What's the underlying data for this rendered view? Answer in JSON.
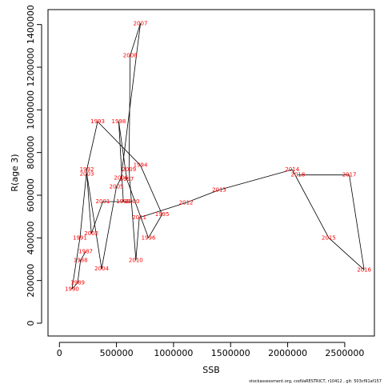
{
  "chart_data": {
    "type": "scatter",
    "xlabel": "SSB",
    "ylabel": "R(age 3)",
    "xlim": [
      -100000,
      2760000
    ],
    "ylim": [
      -60000,
      1470000
    ],
    "x_ticks": [
      0,
      500000,
      1000000,
      1500000,
      2000000,
      2500000
    ],
    "x_tick_labels": [
      "0",
      "500000",
      "1000000",
      "1500000",
      "2000000",
      "2500000"
    ],
    "y_ticks": [
      0,
      200000,
      400000,
      600000,
      800000,
      1000000,
      1200000,
      1400000
    ],
    "y_tick_labels": [
      "0",
      "200000",
      "400000",
      "600000",
      "800000",
      "1000000",
      "1200000",
      "1400000"
    ],
    "grid": false,
    "connected": true,
    "label_color": "#ff0000",
    "line_color": "#000000",
    "footer": "stockassessment.org, codVaRESTRICT, r10412 , git: 503cf91af157",
    "points": [
      {
        "year": "1990",
        "x": 110000,
        "y": 160000
      },
      {
        "year": "1989",
        "x": 160000,
        "y": 190000
      },
      {
        "year": "1988",
        "x": 185000,
        "y": 295000
      },
      {
        "year": "1987",
        "x": 230000,
        "y": 335000
      },
      {
        "year": "1991",
        "x": 180000,
        "y": 400000
      },
      {
        "year": "1992",
        "x": 240000,
        "y": 720000
      },
      {
        "year": "1993",
        "x": 335000,
        "y": 945000
      },
      {
        "year": "1994",
        "x": 710000,
        "y": 740000
      },
      {
        "year": "1995",
        "x": 900000,
        "y": 510000
      },
      {
        "year": "1996",
        "x": 780000,
        "y": 400000
      },
      {
        "year": "1997",
        "x": 590000,
        "y": 675000
      },
      {
        "year": "1998",
        "x": 520000,
        "y": 945000
      },
      {
        "year": "1999",
        "x": 560000,
        "y": 570000
      },
      {
        "year": "2000",
        "x": 640000,
        "y": 570000
      },
      {
        "year": "2001",
        "x": 380000,
        "y": 570000
      },
      {
        "year": "2002",
        "x": 280000,
        "y": 420000
      },
      {
        "year": "2003",
        "x": 240000,
        "y": 700000
      },
      {
        "year": "2004",
        "x": 370000,
        "y": 255000
      },
      {
        "year": "2005",
        "x": 500000,
        "y": 640000
      },
      {
        "year": "2006",
        "x": 540000,
        "y": 680000
      },
      {
        "year": "2007",
        "x": 710000,
        "y": 1405000
      },
      {
        "year": "2008",
        "x": 620000,
        "y": 1255000
      },
      {
        "year": "2009",
        "x": 610000,
        "y": 720000
      },
      {
        "year": "2010",
        "x": 670000,
        "y": 295000
      },
      {
        "year": "2011",
        "x": 700000,
        "y": 495000
      },
      {
        "year": "2012",
        "x": 1110000,
        "y": 565000
      },
      {
        "year": "2013",
        "x": 1400000,
        "y": 625000
      },
      {
        "year": "2014",
        "x": 2040000,
        "y": 720000
      },
      {
        "year": "2015",
        "x": 2360000,
        "y": 400000
      },
      {
        "year": "2016",
        "x": 2670000,
        "y": 250000
      },
      {
        "year": "2017",
        "x": 2540000,
        "y": 695000
      },
      {
        "year": "2018",
        "x": 2090000,
        "y": 695000
      }
    ]
  }
}
